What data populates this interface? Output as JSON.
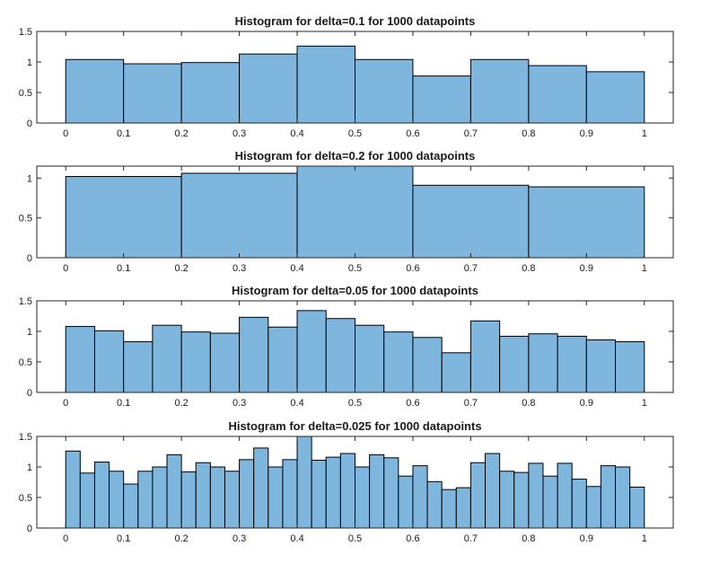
{
  "figure": {
    "bar_color": "#7EB6DE",
    "edge_color": "#000000",
    "background": "#ffffff"
  },
  "chart_data": [
    {
      "type": "bar",
      "title": "Histogram for delta=0.1 for 1000 datapoints",
      "xlabel": "",
      "ylabel": "",
      "xlim": [
        -0.05,
        1.05
      ],
      "ylim": [
        0,
        1.5
      ],
      "xticks": [
        "0",
        "0.1",
        "0.2",
        "0.3",
        "0.4",
        "0.5",
        "0.6",
        "0.7",
        "0.8",
        "0.9",
        "1"
      ],
      "yticks": [
        "0",
        "0.5",
        "1",
        "1.5"
      ],
      "bin_width": 0.1,
      "bin_edges_start": 0,
      "values": [
        1.04,
        0.97,
        0.99,
        1.13,
        1.26,
        1.04,
        0.77,
        1.04,
        0.94,
        0.84
      ],
      "grid": false
    },
    {
      "type": "bar",
      "title": "Histogram for delta=0.2 for 1000 datapoints",
      "xlabel": "",
      "ylabel": "",
      "xlim": [
        -0.05,
        1.05
      ],
      "ylim": [
        0,
        1.15
      ],
      "xticks": [
        "0",
        "0.1",
        "0.2",
        "0.3",
        "0.4",
        "0.5",
        "0.6",
        "0.7",
        "0.8",
        "0.9",
        "1"
      ],
      "yticks": [
        "0",
        "0.5",
        "1"
      ],
      "bin_width": 0.2,
      "bin_edges_start": 0,
      "values": [
        1.02,
        1.06,
        1.17,
        0.91,
        0.89
      ],
      "grid": false
    },
    {
      "type": "bar",
      "title": "Histogram for delta=0.05 for 1000 datapoints",
      "xlabel": "",
      "ylabel": "",
      "xlim": [
        -0.05,
        1.05
      ],
      "ylim": [
        0,
        1.5
      ],
      "xticks": [
        "0",
        "0.1",
        "0.2",
        "0.3",
        "0.4",
        "0.5",
        "0.6",
        "0.7",
        "0.8",
        "0.9",
        "1"
      ],
      "yticks": [
        "0",
        "0.5",
        "1",
        "1.5"
      ],
      "bin_width": 0.05,
      "bin_edges_start": 0,
      "values": [
        1.08,
        1.01,
        0.83,
        1.1,
        0.99,
        0.97,
        1.23,
        1.07,
        1.34,
        1.21,
        1.1,
        0.99,
        0.9,
        0.65,
        1.17,
        0.92,
        0.96,
        0.92,
        0.86,
        0.83
      ],
      "grid": false
    },
    {
      "type": "bar",
      "title": "Histogram for delta=0.025 for 1000 datapoints",
      "xlabel": "",
      "ylabel": "",
      "xlim": [
        -0.05,
        1.05
      ],
      "ylim": [
        0,
        1.5
      ],
      "xticks": [
        "0",
        "0.1",
        "0.2",
        "0.3",
        "0.4",
        "0.5",
        "0.6",
        "0.7",
        "0.8",
        "0.9",
        "1"
      ],
      "yticks": [
        "0",
        "0.5",
        "1",
        "1.5"
      ],
      "bin_width": 0.025,
      "bin_edges_start": 0,
      "values": [
        1.26,
        0.9,
        1.08,
        0.93,
        0.72,
        0.93,
        1.0,
        1.2,
        0.92,
        1.07,
        1.0,
        0.93,
        1.12,
        1.31,
        1.0,
        1.12,
        1.52,
        1.11,
        1.16,
        1.22,
        1.0,
        1.2,
        1.15,
        0.85,
        1.02,
        0.76,
        0.63,
        0.66,
        1.07,
        1.22,
        0.93,
        0.91,
        1.06,
        0.85,
        1.06,
        0.8,
        0.68,
        1.02,
        1.0,
        0.67
      ],
      "grid": false
    }
  ]
}
